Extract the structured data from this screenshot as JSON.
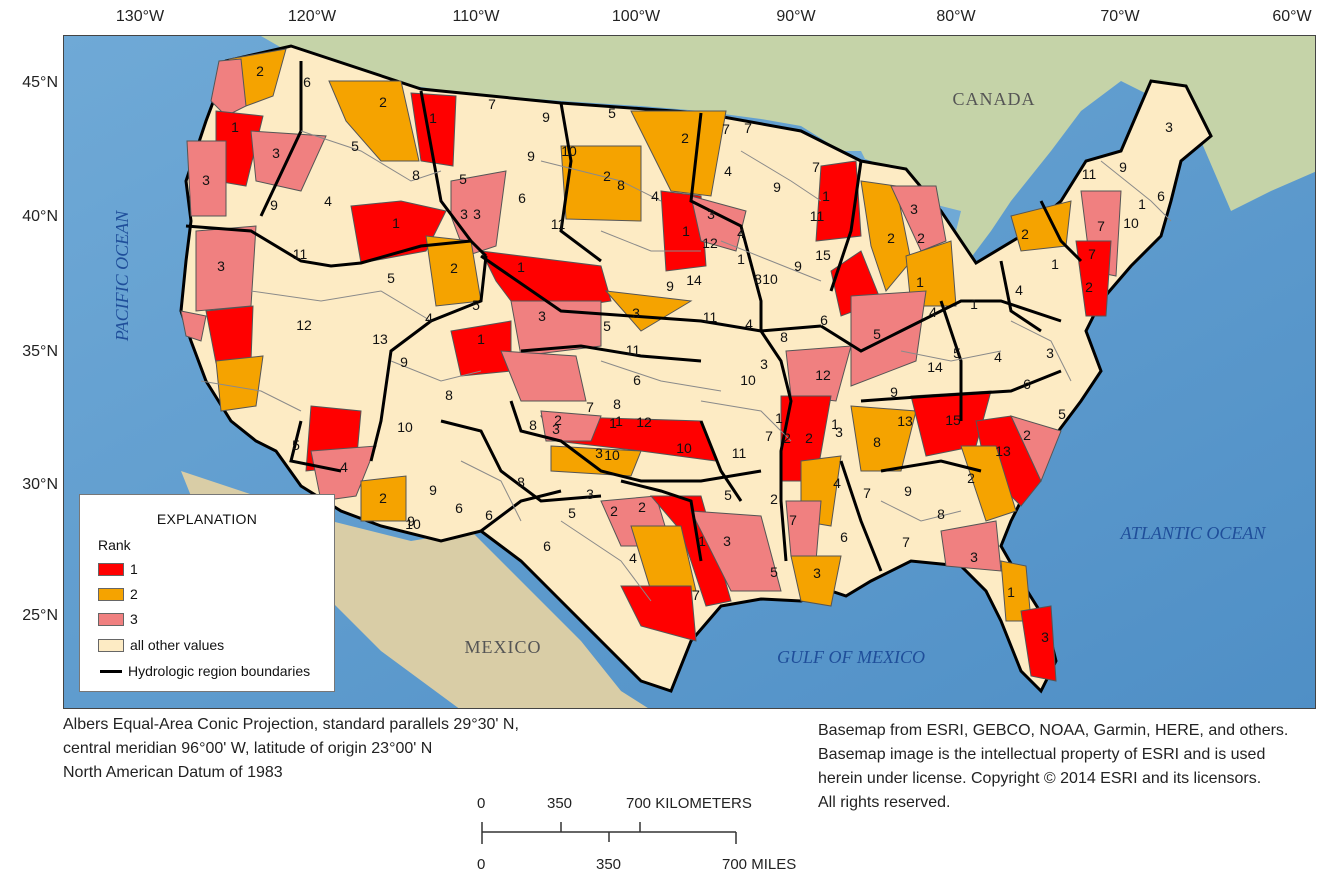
{
  "axes": {
    "longitude_ticks": [
      "130°W",
      "120°W",
      "110°W",
      "100°W",
      "90°W",
      "80°W",
      "70°W",
      "60°W"
    ],
    "latitude_ticks": [
      "45°N",
      "40°N",
      "35°N",
      "30°N",
      "25°N"
    ]
  },
  "map_labels": {
    "canada": "CANADA",
    "mexico": "MEXICO",
    "pacific": "PACIFIC OCEAN",
    "atlantic": "ATLANTIC OCEAN",
    "gulf": "GULF OF MEXICO"
  },
  "legend": {
    "title": "EXPLANATION",
    "subtitle": "Rank",
    "items": [
      {
        "label": "1",
        "color": "#ff0000"
      },
      {
        "label": "2",
        "color": "#f5a300"
      },
      {
        "label": "3",
        "color": "#f08080"
      },
      {
        "label": "all other values",
        "color": "#fdebc4"
      }
    ],
    "boundary_label": "Hydrologic region boundaries"
  },
  "region_ranks": [
    {
      "rank": "2",
      "color": "#f5a300"
    },
    {
      "rank": "6",
      "color": "#fdebc4"
    },
    {
      "rank": "2",
      "color": "#f5a300"
    },
    {
      "rank": "1",
      "color": "#ff0000"
    },
    {
      "rank": "7",
      "color": "#fdebc4"
    },
    {
      "rank": "9",
      "color": "#fdebc4"
    },
    {
      "rank": "5",
      "color": "#fdebc4"
    },
    {
      "rank": "2",
      "color": "#f5a300"
    },
    {
      "rank": "7",
      "color": "#fdebc4"
    },
    {
      "rank": "3",
      "color": "#f08080"
    },
    {
      "rank": "1",
      "color": "#ff0000"
    },
    {
      "rank": "3",
      "color": "#f08080"
    },
    {
      "rank": "5",
      "color": "#fdebc4"
    },
    {
      "rank": "3",
      "color": "#f08080"
    },
    {
      "rank": "9",
      "color": "#fdebc4"
    },
    {
      "rank": "4",
      "color": "#fdebc4"
    },
    {
      "rank": "8",
      "color": "#fdebc4"
    },
    {
      "rank": "1",
      "color": "#ff0000"
    },
    {
      "rank": "5",
      "color": "#fdebc4"
    },
    {
      "rank": "6",
      "color": "#fdebc4"
    },
    {
      "rank": "3",
      "color": "#f08080"
    },
    {
      "rank": "11",
      "color": "#fdebc4"
    },
    {
      "rank": "2",
      "color": "#f5a300"
    },
    {
      "rank": "4",
      "color": "#fdebc4"
    },
    {
      "rank": "10",
      "color": "#fdebc4"
    },
    {
      "rank": "9",
      "color": "#fdebc4"
    },
    {
      "rank": "8",
      "color": "#fdebc4"
    },
    {
      "rank": "4",
      "color": "#fdebc4"
    },
    {
      "rank": "1",
      "color": "#ff0000"
    },
    {
      "rank": "3",
      "color": "#f08080"
    },
    {
      "rank": "7",
      "color": "#fdebc4"
    },
    {
      "rank": "11",
      "color": "#fdebc4"
    },
    {
      "rank": "9",
      "color": "#fdebc4"
    },
    {
      "rank": "3",
      "color": "#f08080"
    },
    {
      "rank": "2",
      "color": "#f5a300"
    },
    {
      "rank": "1",
      "color": "#ff0000"
    },
    {
      "rank": "4",
      "color": "#fdebc4"
    },
    {
      "rank": "1",
      "color": "#ff0000"
    },
    {
      "rank": "7",
      "color": "#fdebc4"
    },
    {
      "rank": "3",
      "color": "#f08080"
    },
    {
      "rank": "2",
      "color": "#f5a300"
    },
    {
      "rank": "5",
      "color": "#fdebc4"
    },
    {
      "rank": "1",
      "color": "#ff0000"
    },
    {
      "rank": "12",
      "color": "#fdebc4"
    },
    {
      "rank": "11",
      "color": "#fdebc4"
    },
    {
      "rank": "13",
      "color": "#fdebc4"
    },
    {
      "rank": "4",
      "color": "#fdebc4"
    },
    {
      "rank": "1",
      "color": "#ff0000"
    },
    {
      "rank": "5",
      "color": "#fdebc4"
    },
    {
      "rank": "3",
      "color": "#f08080"
    },
    {
      "rank": "5",
      "color": "#fdebc4"
    },
    {
      "rank": "7",
      "color": "#fdebc4"
    },
    {
      "rank": "9",
      "color": "#fdebc4"
    },
    {
      "rank": "8",
      "color": "#fdebc4"
    },
    {
      "rank": "6",
      "color": "#fdebc4"
    },
    {
      "rank": "10",
      "color": "#fdebc4"
    },
    {
      "rank": "3",
      "color": "#f08080"
    },
    {
      "rank": "2",
      "color": "#f5a300"
    },
    {
      "rank": "10",
      "color": "#fdebc4"
    },
    {
      "rank": "8",
      "color": "#fdebc4"
    },
    {
      "rank": "1",
      "color": "#ff0000"
    },
    {
      "rank": "3",
      "color": "#f08080"
    },
    {
      "rank": "11",
      "color": "#fdebc4"
    },
    {
      "rank": "8",
      "color": "#fdebc4"
    },
    {
      "rank": "9",
      "color": "#fdebc4"
    },
    {
      "rank": "6",
      "color": "#fdebc4"
    },
    {
      "rank": "2",
      "color": "#f5a300"
    },
    {
      "rank": "4",
      "color": "#fdebc4"
    },
    {
      "rank": "5",
      "color": "#fdebc4"
    },
    {
      "rank": "9",
      "color": "#fdebc4"
    },
    {
      "rank": "6",
      "color": "#fdebc4"
    },
    {
      "rank": "10",
      "color": "#fdebc4"
    },
    {
      "rank": "8",
      "color": "#fdebc4"
    },
    {
      "rank": "12",
      "color": "#fdebc4"
    },
    {
      "rank": "1",
      "color": "#ff0000"
    },
    {
      "rank": "3",
      "color": "#f08080"
    },
    {
      "rank": "7",
      "color": "#fdebc4"
    },
    {
      "rank": "10",
      "color": "#fdebc4"
    },
    {
      "rank": "5",
      "color": "#fdebc4"
    },
    {
      "rank": "2",
      "color": "#f5a300"
    },
    {
      "rank": "4",
      "color": "#fdebc4"
    },
    {
      "rank": "5",
      "color": "#fdebc4"
    },
    {
      "rank": "6",
      "color": "#fdebc4"
    },
    {
      "rank": "1",
      "color": "#ff0000"
    },
    {
      "rank": "2",
      "color": "#f5a300"
    },
    {
      "rank": "3",
      "color": "#f08080"
    },
    {
      "rank": "1",
      "color": "#ff0000"
    },
    {
      "rank": "7",
      "color": "#fdebc4"
    },
    {
      "rank": "15",
      "color": "#fdebc4"
    },
    {
      "rank": "8",
      "color": "#fdebc4"
    },
    {
      "rank": "12",
      "color": "#fdebc4"
    },
    {
      "rank": "10",
      "color": "#fdebc4"
    },
    {
      "rank": "9",
      "color": "#fdebc4"
    },
    {
      "rank": "14",
      "color": "#fdebc4"
    },
    {
      "rank": "11",
      "color": "#fdebc4"
    },
    {
      "rank": "4",
      "color": "#fdebc4"
    },
    {
      "rank": "8",
      "color": "#fdebc4"
    },
    {
      "rank": "6",
      "color": "#fdebc4"
    },
    {
      "rank": "3",
      "color": "#f08080"
    },
    {
      "rank": "10",
      "color": "#fdebc4"
    },
    {
      "rank": "12",
      "color": "#fdebc4"
    },
    {
      "rank": "1",
      "color": "#ff0000"
    },
    {
      "rank": "11",
      "color": "#fdebc4"
    },
    {
      "rank": "2",
      "color": "#f5a300"
    },
    {
      "rank": "3",
      "color": "#f08080"
    },
    {
      "rank": "4",
      "color": "#fdebc4"
    },
    {
      "rank": "7",
      "color": "#fdebc4"
    },
    {
      "rank": "5",
      "color": "#fdebc4"
    },
    {
      "rank": "2",
      "color": "#f5a300"
    },
    {
      "rank": "8",
      "color": "#fdebc4"
    },
    {
      "rank": "6",
      "color": "#fdebc4"
    },
    {
      "rank": "7",
      "color": "#fdebc4"
    },
    {
      "rank": "9",
      "color": "#fdebc4"
    },
    {
      "rank": "7",
      "color": "#fdebc4"
    },
    {
      "rank": "8",
      "color": "#fdebc4"
    },
    {
      "rank": "2",
      "color": "#f5a300"
    },
    {
      "rank": "3",
      "color": "#f08080"
    },
    {
      "rank": "3",
      "color": "#f08080"
    },
    {
      "rank": "1",
      "color": "#ff0000"
    },
    {
      "rank": "2",
      "color": "#f5a300"
    },
    {
      "rank": "3",
      "color": "#f08080"
    },
    {
      "rank": "13",
      "color": "#fdebc4"
    },
    {
      "rank": "5",
      "color": "#fdebc4"
    },
    {
      "rank": "2",
      "color": "#f5a300"
    },
    {
      "rank": "1",
      "color": "#ff0000"
    },
    {
      "rank": "4",
      "color": "#fdebc4"
    },
    {
      "rank": "15",
      "color": "#fdebc4"
    },
    {
      "rank": "13",
      "color": "#fdebc4"
    },
    {
      "rank": "9",
      "color": "#fdebc4"
    },
    {
      "rank": "14",
      "color": "#fdebc4"
    },
    {
      "rank": "5",
      "color": "#fdebc4"
    },
    {
      "rank": "4",
      "color": "#fdebc4"
    },
    {
      "rank": "1",
      "color": "#ff0000"
    },
    {
      "rank": "3",
      "color": "#f08080"
    },
    {
      "rank": "6",
      "color": "#fdebc4"
    },
    {
      "rank": "5",
      "color": "#fdebc4"
    },
    {
      "rank": "2",
      "color": "#f5a300"
    },
    {
      "rank": "7",
      "color": "#fdebc4"
    },
    {
      "rank": "10",
      "color": "#fdebc4"
    },
    {
      "rank": "4",
      "color": "#fdebc4"
    },
    {
      "rank": "1",
      "color": "#ff0000"
    },
    {
      "rank": "2",
      "color": "#f5a300"
    },
    {
      "rank": "7",
      "color": "#fdebc4"
    },
    {
      "rank": "11",
      "color": "#fdebc4"
    },
    {
      "rank": "9",
      "color": "#fdebc4"
    },
    {
      "rank": "6",
      "color": "#fdebc4"
    },
    {
      "rank": "3",
      "color": "#f08080"
    },
    {
      "rank": "1",
      "color": "#ff0000"
    },
    {
      "rank": "9",
      "color": "#fdebc4"
    },
    {
      "rank": "3",
      "color": "#f08080"
    },
    {
      "rank": "2",
      "color": "#f5a300"
    }
  ],
  "projection_note": [
    "Albers Equal-Area Conic Projection, standard parallels 29°30' N,",
    "central meridian 96°00' W, latitude of origin 23°00' N",
    "North American Datum of 1983"
  ],
  "basemap_credit": [
    "Basemap from ESRI, GEBCO, NOAA, Garmin, HERE, and others.",
    "Basemap image is the intellectual property of ESRI and is used",
    "herein under license. Copyright © 2014 ESRI and its licensors.",
    "All rights reserved."
  ],
  "scale_bar": {
    "km_ticks": [
      "0",
      "350",
      "700 KILOMETERS"
    ],
    "mile_ticks": [
      "0",
      "350",
      "700 MILES"
    ]
  }
}
